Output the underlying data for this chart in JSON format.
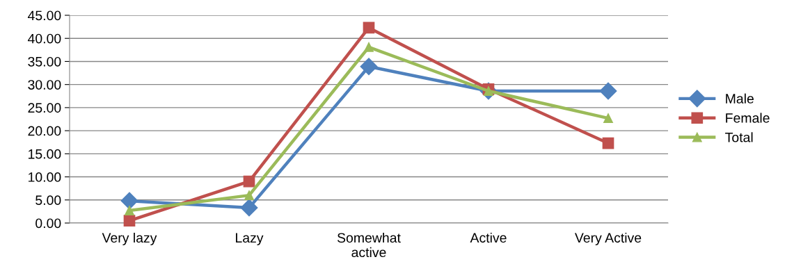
{
  "chart_data": {
    "type": "line",
    "categories": [
      "Very lazy",
      "Lazy",
      "Somewhat\nactive",
      "Active",
      "Very Active"
    ],
    "series": [
      {
        "name": "Male",
        "color": "#4f81bd",
        "marker": "diamond",
        "values": [
          4.8,
          3.3,
          33.9,
          28.6,
          28.6
        ]
      },
      {
        "name": "Female",
        "color": "#c0504d",
        "marker": "square",
        "values": [
          0.5,
          9.0,
          42.3,
          29.0,
          17.3
        ]
      },
      {
        "name": "Total",
        "color": "#9bbb59",
        "marker": "triangle",
        "values": [
          2.7,
          6.0,
          38.1,
          28.6,
          22.7
        ]
      }
    ],
    "ylim": [
      0,
      45
    ],
    "yticks": [
      {
        "value": 0,
        "label": "0.00"
      },
      {
        "value": 5,
        "label": "5.00"
      },
      {
        "value": 10,
        "label": "10.00"
      },
      {
        "value": 15,
        "label": "15.00"
      },
      {
        "value": 20,
        "label": "20.00"
      },
      {
        "value": 25,
        "label": "25.00"
      },
      {
        "value": 30,
        "label": "30.00"
      },
      {
        "value": 35,
        "label": "35.00"
      },
      {
        "value": 40,
        "label": "40.00"
      },
      {
        "value": 45,
        "label": "45.00"
      }
    ],
    "grid": "y",
    "legend": "right",
    "line_style": "solid"
  }
}
